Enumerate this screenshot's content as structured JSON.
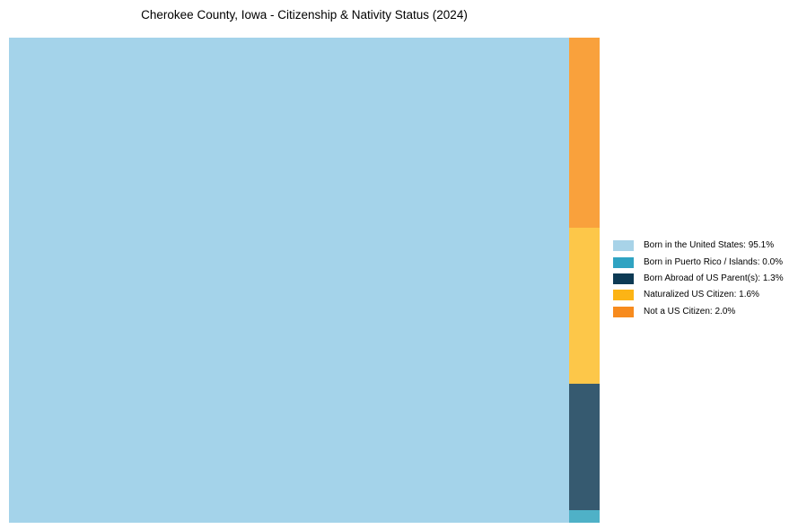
{
  "chart_data": {
    "type": "treemap",
    "title": "Cherokee County, Iowa - Citizenship & Nativity Status (2024)",
    "legend_position": "right",
    "grid": false,
    "categories": [
      "Born in the United States",
      "Born in Puerto Rico / Islands",
      "Born Abroad of US Parent(s)",
      "Naturalized US Citizen",
      "Not a US Citizen"
    ],
    "values": [
      95.1,
      0.0,
      1.3,
      1.6,
      2.0
    ],
    "items": [
      {
        "label": "Born in the United States",
        "pct": 95.1,
        "legend_text": "Born in the United States: 95.1%",
        "swatch_color": "#A8D3E8",
        "tile_color": "#A4D3EA"
      },
      {
        "label": "Born in Puerto Rico / Islands",
        "pct": 0.0,
        "legend_text": "Born in Puerto Rico / Islands: 0.0%",
        "swatch_color": "#2FA3C2",
        "tile_color": "#4FB1C7"
      },
      {
        "label": "Born Abroad of US Parent(s)",
        "pct": 1.3,
        "legend_text": "Born Abroad of US Parent(s): 1.3%",
        "swatch_color": "#0D3A54",
        "tile_color": "#365A70"
      },
      {
        "label": "Naturalized US Citizen",
        "pct": 1.6,
        "legend_text": "Naturalized US Citizen: 1.6%",
        "swatch_color": "#FCB415",
        "tile_color": "#FDC749"
      },
      {
        "label": "Not a US Citizen",
        "pct": 2.0,
        "legend_text": "Not a US Citizen: 2.0%",
        "swatch_color": "#F78B1E",
        "tile_color": "#F9A13C"
      }
    ]
  }
}
